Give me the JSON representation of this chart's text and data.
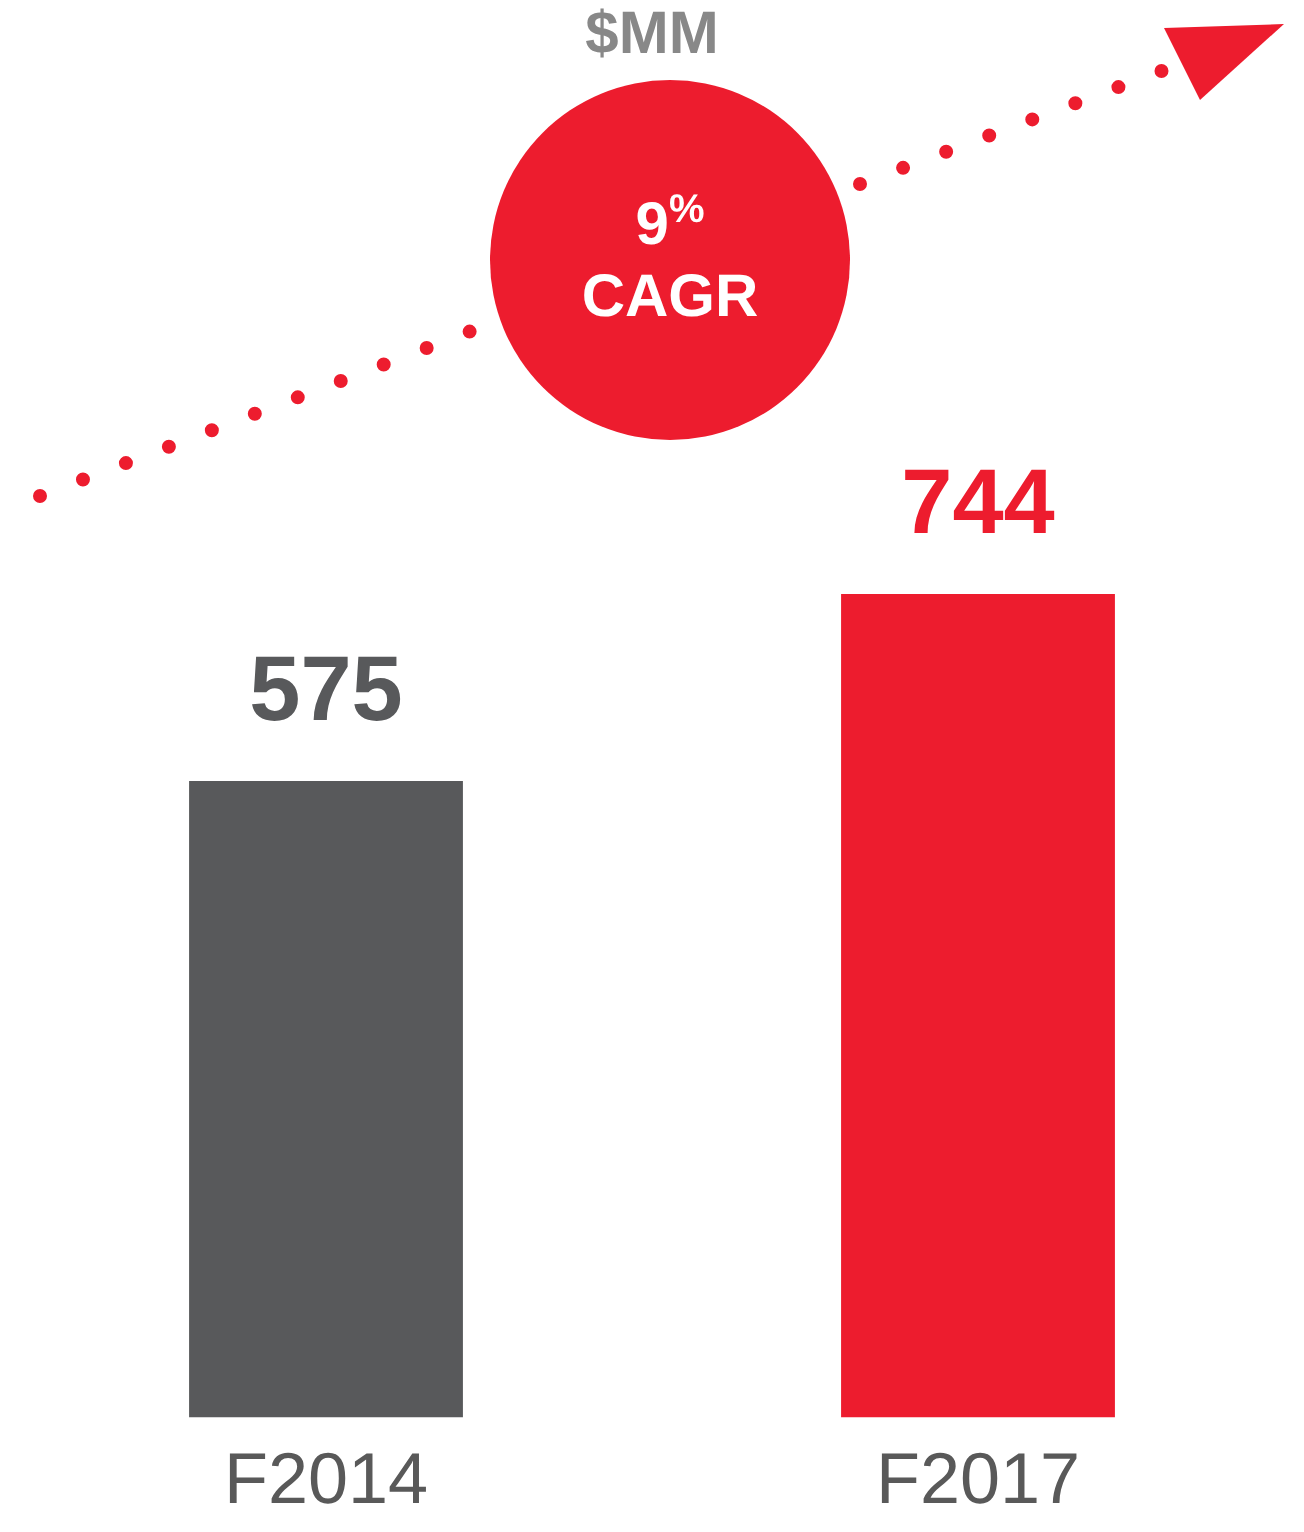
{
  "chart_data": {
    "type": "bar",
    "title": "$MM",
    "categories": [
      "F2014",
      "F2017"
    ],
    "values": [
      575,
      744
    ],
    "colors": [
      "#58595b",
      "#ed1c2e"
    ],
    "data_labels": true,
    "grid": false,
    "legend": false,
    "tick_labels": "x",
    "annotations": [
      "9$^{%}$ CAGR"
    ]
  }
}
